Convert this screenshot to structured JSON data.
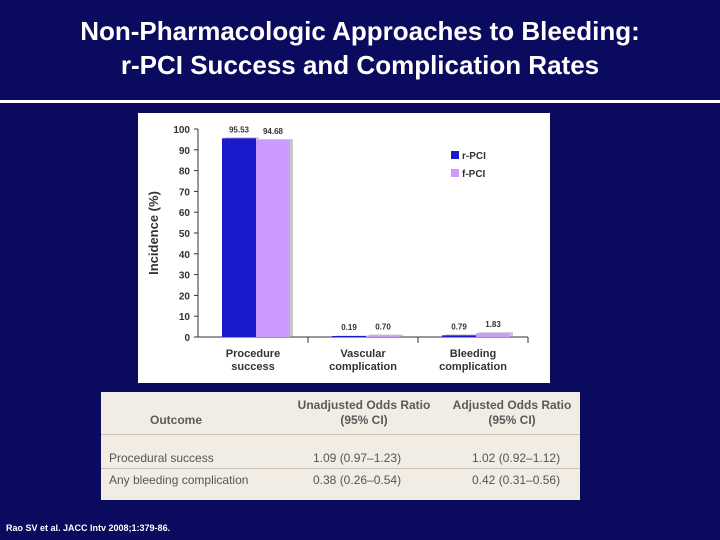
{
  "title": {
    "line1": "Non-Pharmacologic Approaches to Bleeding:",
    "line2": "r-PCI Success and Complication Rates"
  },
  "chart_data": {
    "type": "bar",
    "ylabel": "Incidence (%)",
    "ylim": [
      0,
      100
    ],
    "yticks": [
      0,
      10,
      20,
      30,
      40,
      50,
      60,
      70,
      80,
      90,
      100
    ],
    "categories": [
      [
        "Procedure",
        "success"
      ],
      [
        "Vascular",
        "complication"
      ],
      [
        "Bleeding",
        "complication"
      ]
    ],
    "series": [
      {
        "name": "r-PCI",
        "color": "#1a1acc",
        "values": [
          95.53,
          0.19,
          0.79
        ],
        "labels": [
          "95.53",
          "0.19",
          "0.79"
        ]
      },
      {
        "name": "f-PCI",
        "color": "#cc99ff",
        "values": [
          94.68,
          0.7,
          1.83
        ],
        "labels": [
          "94.68",
          "0.70",
          "1.83"
        ]
      }
    ],
    "legend_position": "top-right",
    "grid": false
  },
  "table": {
    "headers": {
      "outcome": "Outcome",
      "unadjusted": [
        "Unadjusted Odds Ratio",
        "(95% CI)"
      ],
      "adjusted": [
        "Adjusted Odds Ratio",
        "(95% CI)"
      ]
    },
    "rows": [
      {
        "outcome": "Procedural success",
        "unadjusted": "1.09 (0.97–1.23)",
        "adjusted": "1.02 (0.92–1.12)"
      },
      {
        "outcome": "Any bleeding complication",
        "unadjusted": "0.38 (0.26–0.54)",
        "adjusted": "0.42 (0.31–0.56)"
      }
    ]
  },
  "citation": "Rao SV et al.  JACC Intv 2008;1:379-86."
}
